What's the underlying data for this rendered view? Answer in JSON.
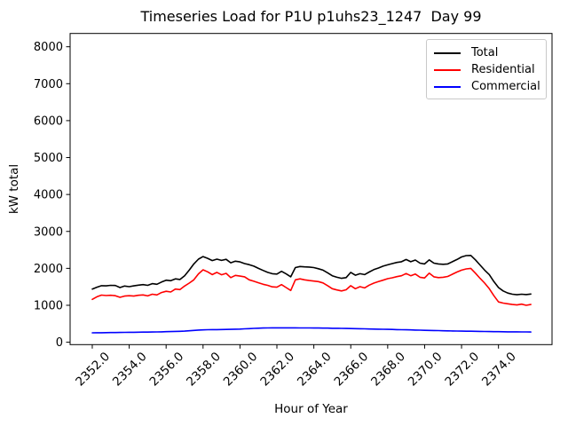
{
  "figure": {
    "title": "Timeseries Load for P1U p1uhs23_1247  Day 99"
  },
  "chart_data": {
    "type": "line",
    "title": "Timeseries Load for P1U p1uhs23_1247  Day 99",
    "xlabel": "Hour of Year",
    "ylabel": "kW total",
    "xlim": [
      2350.8,
      2376.9
    ],
    "ylim": [
      -65,
      8360
    ],
    "grid": false,
    "x_ticks": [
      2352.0,
      2354.0,
      2356.0,
      2358.0,
      2360.0,
      2362.0,
      2364.0,
      2366.0,
      2368.0,
      2370.0,
      2372.0,
      2374.0
    ],
    "x_tick_labels": [
      "2352.0",
      "2354.0",
      "2356.0",
      "2358.0",
      "2360.0",
      "2362.0",
      "2364.0",
      "2366.0",
      "2368.0",
      "2370.0",
      "2372.0",
      "2374.0"
    ],
    "y_ticks": [
      0,
      1000,
      2000,
      3000,
      4000,
      5000,
      6000,
      7000,
      8000
    ],
    "y_tick_labels": [
      "0",
      "1000",
      "2000",
      "3000",
      "4000",
      "5000",
      "6000",
      "7000",
      "8000"
    ],
    "legend": {
      "position": "upper right",
      "entries": [
        "Total",
        "Residential",
        "Commercial"
      ]
    },
    "x_start": 2352.0,
    "x_step": 0.25,
    "series": [
      {
        "name": "Total",
        "color": "#000000",
        "values": [
          1440,
          1490,
          1530,
          1525,
          1540,
          1535,
          1480,
          1520,
          1505,
          1525,
          1545,
          1560,
          1540,
          1585,
          1570,
          1630,
          1680,
          1665,
          1715,
          1700,
          1800,
          1950,
          2120,
          2250,
          2320,
          2270,
          2210,
          2250,
          2215,
          2245,
          2150,
          2195,
          2175,
          2130,
          2100,
          2060,
          2000,
          1945,
          1890,
          1855,
          1845,
          1920,
          1850,
          1770,
          2020,
          2050,
          2040,
          2035,
          2020,
          1990,
          1950,
          1880,
          1800,
          1760,
          1730,
          1750,
          1890,
          1815,
          1855,
          1830,
          1900,
          1965,
          2010,
          2060,
          2095,
          2130,
          2160,
          2180,
          2240,
          2180,
          2225,
          2140,
          2120,
          2230,
          2140,
          2120,
          2110,
          2120,
          2180,
          2240,
          2310,
          2345,
          2350,
          2230,
          2090,
          1950,
          1830,
          1640,
          1480,
          1390,
          1330,
          1300,
          1285,
          1300,
          1290,
          1305
        ]
      },
      {
        "name": "Residential",
        "color": "#ff0000",
        "values": [
          1160,
          1230,
          1275,
          1265,
          1270,
          1260,
          1215,
          1250,
          1260,
          1250,
          1270,
          1280,
          1255,
          1300,
          1280,
          1345,
          1380,
          1360,
          1440,
          1425,
          1520,
          1600,
          1690,
          1850,
          1960,
          1905,
          1830,
          1890,
          1825,
          1865,
          1750,
          1810,
          1790,
          1770,
          1690,
          1650,
          1610,
          1570,
          1540,
          1500,
          1490,
          1560,
          1480,
          1400,
          1690,
          1715,
          1690,
          1670,
          1655,
          1640,
          1605,
          1530,
          1450,
          1415,
          1390,
          1420,
          1530,
          1450,
          1505,
          1470,
          1545,
          1600,
          1640,
          1680,
          1720,
          1745,
          1775,
          1800,
          1860,
          1800,
          1845,
          1760,
          1740,
          1870,
          1770,
          1750,
          1760,
          1780,
          1840,
          1900,
          1950,
          1985,
          2000,
          1870,
          1730,
          1600,
          1450,
          1260,
          1090,
          1060,
          1040,
          1020,
          1010,
          1030,
          1000,
          1020
        ]
      },
      {
        "name": "Commercial",
        "color": "#0000ff",
        "values": [
          255,
          257,
          258,
          260,
          262,
          263,
          265,
          267,
          268,
          270,
          272,
          274,
          275,
          277,
          279,
          282,
          285,
          288,
          292,
          296,
          300,
          310,
          320,
          328,
          335,
          338,
          340,
          342,
          344,
          346,
          348,
          352,
          356,
          362,
          368,
          375,
          380,
          384,
          387,
          388,
          389,
          389,
          389,
          388,
          388,
          387,
          387,
          386,
          385,
          384,
          383,
          381,
          378,
          376,
          374,
          372,
          369,
          367,
          364,
          362,
          359,
          356,
          354,
          351,
          348,
          345,
          342,
          339,
          336,
          333,
          330,
          327,
          323,
          320,
          317,
          314,
          311,
          308,
          306,
          303,
          301,
          299,
          297,
          295,
          293,
          291,
          289,
          287,
          285,
          284,
          282,
          281,
          280,
          279,
          278,
          277
        ]
      }
    ]
  }
}
